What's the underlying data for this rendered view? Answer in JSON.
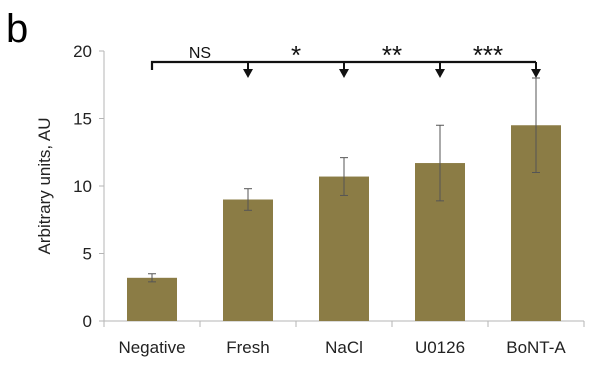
{
  "panel_label": "b",
  "chart_data": {
    "type": "bar",
    "title": "",
    "xlabel": "",
    "ylabel": "Arbitrary units, AU",
    "ylim": [
      0,
      20
    ],
    "yticks": [
      "0",
      "5",
      "10",
      "15",
      "20"
    ],
    "categories": [
      "Negative",
      "Fresh",
      "NaCl",
      "U0126",
      "BoNT-A"
    ],
    "values": [
      3.2,
      9.0,
      10.7,
      11.7,
      14.5
    ],
    "errors": [
      0.3,
      0.8,
      1.4,
      2.8,
      3.5
    ],
    "bar_color": "#8b7c45",
    "grid": false,
    "annotations": {
      "comparison_bracket": "Negative vs each treatment",
      "labels": [
        "NS",
        "*",
        "**",
        "***"
      ]
    }
  }
}
